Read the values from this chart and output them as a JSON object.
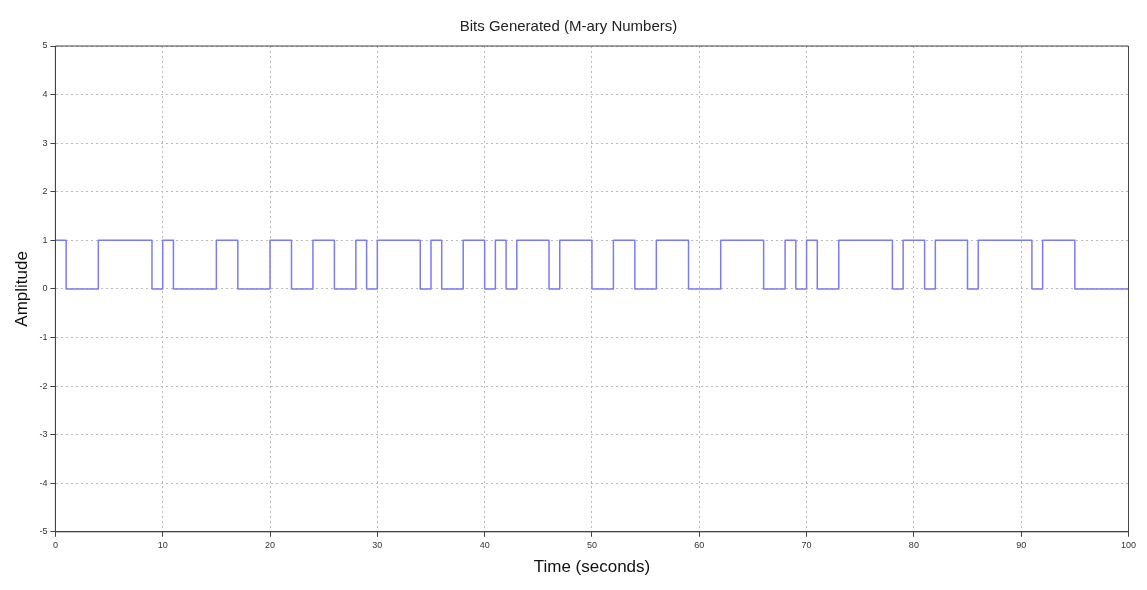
{
  "chart_data": {
    "type": "step",
    "title": "Bits Generated (M-ary Numbers)",
    "xlabel": "Time (seconds)",
    "ylabel": "Amplitude",
    "x": [
      0,
      1,
      4,
      9,
      10,
      11,
      15,
      17,
      20,
      22,
      24,
      26,
      28,
      29,
      30,
      34,
      35,
      36,
      38,
      40,
      41,
      42,
      43,
      46,
      47,
      50,
      52,
      54,
      56,
      59,
      62,
      66,
      68,
      69,
      70,
      71,
      73,
      78,
      79,
      81,
      82,
      85,
      86,
      91,
      92,
      95,
      100
    ],
    "series": [
      {
        "color": "#7b7bf5",
        "values": [
          1,
          0,
          1,
          0,
          1,
          0,
          1,
          0,
          1,
          0,
          1,
          0,
          1,
          0,
          1,
          0,
          1,
          0,
          1,
          0,
          1,
          0,
          1,
          0,
          1,
          0,
          1,
          0,
          1,
          0,
          1,
          0,
          1,
          0,
          1,
          0,
          1,
          0,
          1,
          0,
          1,
          0,
          1,
          0,
          1,
          0,
          0
        ]
      }
    ],
    "xlim": [
      0,
      100
    ],
    "xticks": [
      0,
      10,
      20,
      30,
      40,
      50,
      60,
      70,
      80,
      90,
      100
    ],
    "ylim": [
      -5,
      5
    ],
    "yticks": [
      -5,
      -4,
      -3,
      -2,
      -1,
      0,
      1,
      2,
      3,
      4,
      5
    ],
    "grid": true,
    "legend": false,
    "line_style": "solid",
    "marker": "none"
  }
}
